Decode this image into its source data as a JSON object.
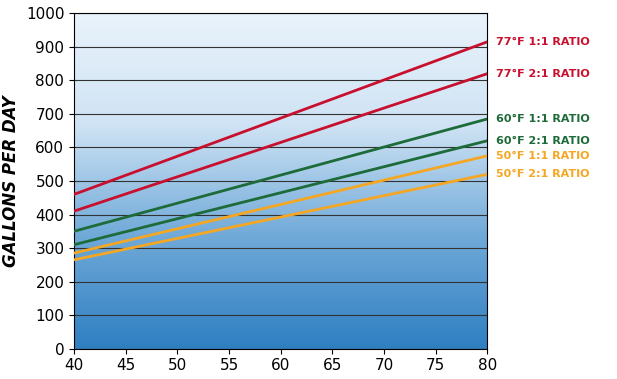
{
  "chart_data": {
    "type": "line",
    "y_label": "GALLONS PER DAY",
    "x": [
      40,
      80
    ],
    "series": [
      {
        "name": "77°F 1:1 RATIO",
        "color": "#c8102e",
        "values": [
          460,
          915
        ]
      },
      {
        "name": "77°F 2:1 RATIO",
        "color": "#c8102e",
        "values": [
          410,
          820
        ]
      },
      {
        "name": "60°F 1:1 RATIO",
        "color": "#1e6b3a",
        "values": [
          350,
          685
        ]
      },
      {
        "name": "60°F 2:1 RATIO",
        "color": "#1e6b3a",
        "values": [
          310,
          620
        ]
      },
      {
        "name": "50°F 1:1 RATIO",
        "color": "#f5a623",
        "values": [
          285,
          575
        ]
      },
      {
        "name": "50°F 2:1 RATIO",
        "color": "#f5a623",
        "values": [
          265,
          520
        ]
      }
    ],
    "xlim": [
      40,
      80
    ],
    "xticks": [
      40,
      45,
      50,
      55,
      60,
      65,
      70,
      75,
      80
    ],
    "ylim": [
      0,
      1000
    ],
    "yticks": [
      0,
      100,
      200,
      300,
      400,
      500,
      600,
      700,
      800,
      900,
      1000
    ],
    "grid": true
  }
}
